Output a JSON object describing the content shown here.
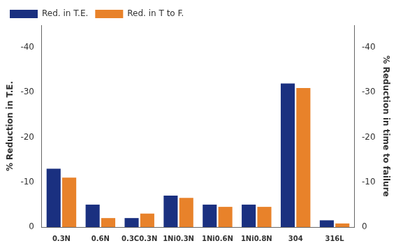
{
  "chart_data": {
    "type": "bar",
    "categories": [
      "0.3N",
      "0.6N",
      "0.3C0.3N",
      "1Ni0.3N",
      "1Ni0.6N",
      "1Ni0.8N",
      "304",
      "316L"
    ],
    "series": [
      {
        "name": "Red. in T.E.",
        "color": "#1a3080",
        "values": [
          -13,
          -5,
          -2,
          -7,
          -5,
          -5,
          -32,
          -1.5
        ]
      },
      {
        "name": "Red. in T to F.",
        "color": "#e8822a",
        "values": [
          -11,
          -2,
          -3,
          -6.5,
          -4.5,
          -4.5,
          -31,
          -0.8
        ]
      }
    ],
    "ylabel": "% Reduction in T.E.",
    "y2label": "% Reduction in time to failure",
    "ylim": [
      0,
      -45
    ],
    "yticks": [
      0,
      -10,
      -20,
      -30,
      -40
    ],
    "y2lim": [
      0,
      -45
    ],
    "y2ticks": [
      0,
      -10,
      -20,
      -30,
      -40
    ],
    "grid": false,
    "legend": "upper left"
  }
}
